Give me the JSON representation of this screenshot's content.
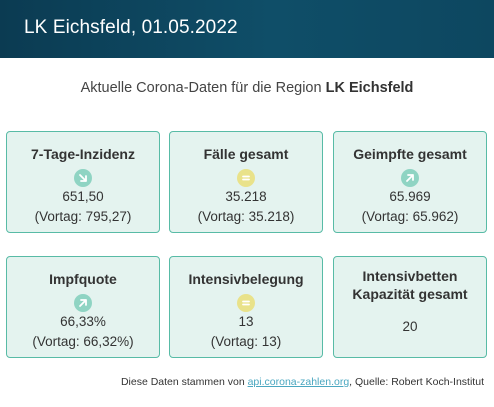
{
  "header": {
    "title": "LK Eichsfeld, 01.05.2022"
  },
  "subtitle": {
    "prefix": "Aktuelle Corona-Daten für die Region",
    "region": "LK Eichsfeld"
  },
  "cards": [
    {
      "title": "7-Tage-Inzidenz",
      "trend": "down-right-arrow-icon",
      "value": "651,50",
      "previous": "(Vortag: 795,27)"
    },
    {
      "title": "Fälle gesamt",
      "trend": "equal-icon",
      "value": "35.218",
      "previous": "(Vortag: 35.218)"
    },
    {
      "title": "Geimpfte gesamt",
      "trend": "up-right-arrow-icon",
      "value": "65.969",
      "previous": "(Vortag: 65.962)"
    },
    {
      "title": "Impfquote",
      "trend": "up-right-arrow-icon",
      "value": "66,33%",
      "previous": "(Vortag: 66,32%)"
    },
    {
      "title": "Intensivbelegung",
      "trend": "equal-icon",
      "value": "13",
      "previous": "(Vortag: 13)"
    },
    {
      "title_line1": "Intensivbetten",
      "title_line2": "Kapazität gesamt",
      "value": "20"
    }
  ],
  "footer": {
    "prefix": "Diese Daten stammen von",
    "link_text": "api.corona-zahlen.org",
    "suffix": ", Quelle: Robert Koch-Institut"
  },
  "colors": {
    "header_bg": "#0f4e68",
    "card_bg": "#e4f3ef",
    "card_border": "#58bba6",
    "trend_green": "#8fd4c3",
    "trend_yellow": "#e9e28a",
    "link": "#4aa7c0"
  }
}
